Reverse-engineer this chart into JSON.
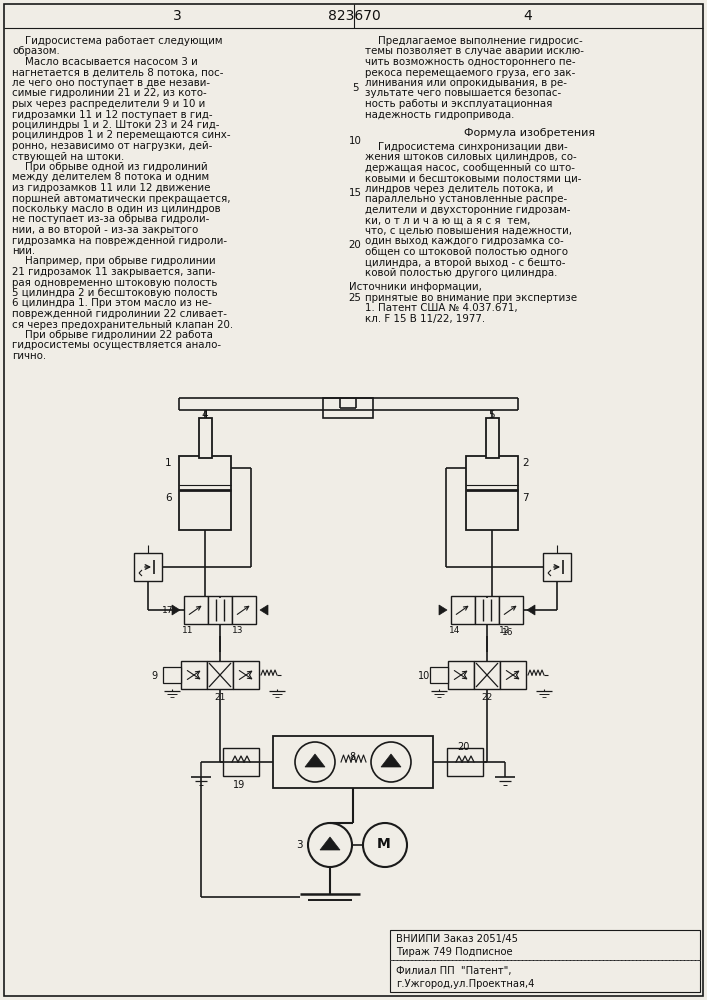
{
  "bg_color": "#f0ede6",
  "line_color": "#1a1a1a",
  "text_color": "#111111",
  "page_header": "823670",
  "page_left": "3",
  "page_right": "4",
  "left_text": [
    "    Гидросистема работает следующим",
    "образом.",
    "    Масло всасывается насосом 3 и",
    "нагнетается в делитель 8 потока, пос-",
    "ле чего оно поступает в две незави-",
    "симые гидролинии 21 и 22, из кото-",
    "рых через распределители 9 и 10 и",
    "гидрозамки 11 и 12 поступает в гид-",
    "роцилиндры 1 и 2. Штоки 23 и 24 гид-",
    "роцилиндров 1 и 2 перемещаются синх-",
    "ронно, независимо от нагрузки, дей-",
    "ствующей на штоки.",
    "    При обрыве одной из гидролиний",
    "между делителем 8 потока и одним",
    "из гидрозамков 11 или 12 движение",
    "поршней автоматически прекращается,",
    "поскольку масло в один из цилиндров",
    "не поступает из-за обрыва гидроли-",
    "нии, а во второй - из-за закрытого",
    "гидрозамка на поврежденной гидроли-",
    "нии.",
    "    Например, при обрыве гидролинии",
    "21 гидрозамок 11 закрывается, запи-",
    "рая одновременно штоковую полость",
    "5 цилиндра 2 и бесштоковую полость",
    "6 цилиндра 1. При этом масло из не-",
    "поврежденной гидролинии 22 сливает-",
    "ся через предохранительный клапан 20.",
    "    При обрыве гидролинии 22 работа",
    "гидросистемы осуществляется анало-",
    "гично."
  ],
  "right_text_top": [
    "    Предлагаемое выполнение гидросис-",
    "темы позволяет в случае аварии исклю-",
    "чить возможность одностороннего пе-",
    "рекоса перемещаемого груза, его зак-",
    "линивания или опрокидывания, в ре-",
    "зультате чего повышается безопас-",
    "ность работы и эксплуатационная",
    "надежность гидропривода."
  ],
  "formula_title": "Формула изобретения",
  "formula_text": [
    "    Гидросистема синхронизации дви-",
    "жения штоков силовых цилиндров, со-",
    "держащая насос, сообщенный со што-",
    "ковыми и бесштоковыми полостями ци-",
    "линдров через делитель потока, и",
    "параллельно установленные распре-",
    "делители и двухсторонние гидрозам-",
    "ки, о т л и ч а ю щ а я с я  тем,",
    "что, с целью повышения надежности,",
    "один выход каждого гидрозамка со-",
    "общен со штоковой полостью одного",
    "цилиндра, а второй выход - с бешто-",
    "ковой полостью другого цилиндра."
  ],
  "sources_title": "Источники информации,",
  "sources_text": [
    "принятые во внимание при экспертизе",
    "1. Патент США № 4.037.671,",
    "кл. F 15 В 11/22, 1977."
  ],
  "bottom_text": [
    "ВНИИПИ Заказ 2051/45",
    "Тираж 749 Подписное"
  ],
  "bottom_text2": [
    "Филиал ПП  \"Патент\",",
    "г.Ужгород,ул.Проектная,4"
  ]
}
